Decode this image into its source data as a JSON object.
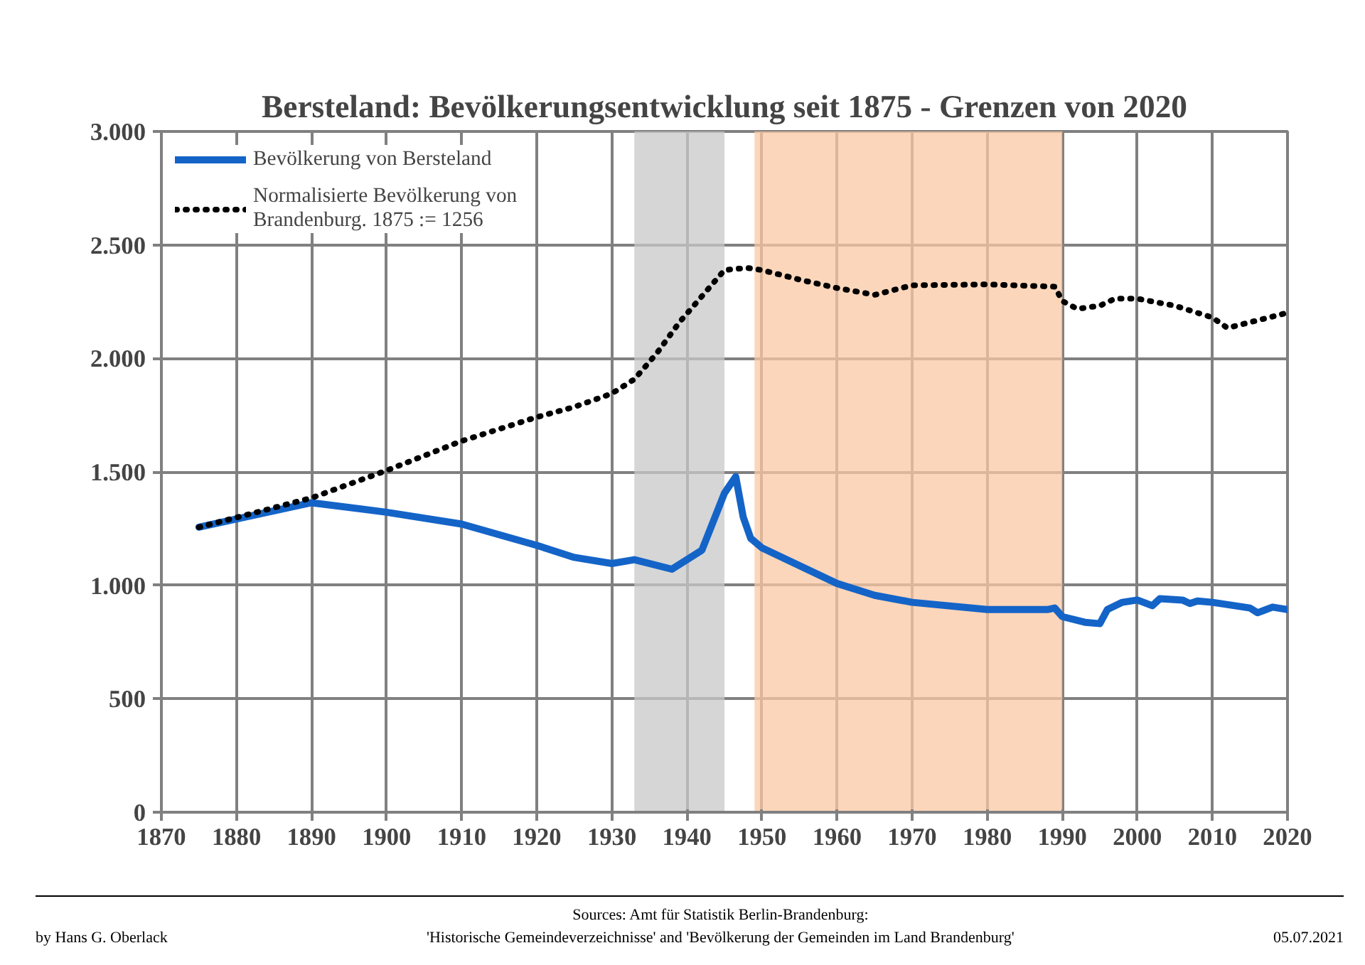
{
  "chart_data": {
    "type": "line",
    "title": "Bersteland: Bevölkerungsentwicklung seit 1875 - Grenzen von 2020",
    "series": [
      {
        "name": "Bevölkerung von Bersteland",
        "color": "#1464c8",
        "line_style": "solid",
        "x": [
          1875,
          1890,
          1900,
          1910,
          1920,
          1925,
          1930,
          1933,
          1938,
          1942,
          1945,
          1946.5,
          1947.5,
          1948.5,
          1950,
          1960,
          1965,
          1970,
          1980,
          1988,
          1989,
          1990,
          1993,
          1995,
          1996,
          1998,
          2000,
          2002,
          2003,
          2006,
          2007,
          2008,
          2010,
          2015,
          2016,
          2018,
          2020
        ],
        "values": [
          1256,
          1364,
          1322,
          1270,
          1176,
          1123,
          1096,
          1113,
          1071,
          1155,
          1406,
          1479,
          1301,
          1207,
          1165,
          1008,
          956,
          925,
          893,
          893,
          900,
          862,
          837,
          831,
          893,
          925,
          935,
          910,
          941,
          935,
          920,
          931,
          925,
          900,
          879,
          904,
          893
        ]
      },
      {
        "name": "Normalisierte Bevölkerung von\nBrandenburg. 1875 := 1256",
        "color": "#000000",
        "line_style": "dotted",
        "x": [
          1875,
          1890,
          1900,
          1910,
          1920,
          1925,
          1930,
          1933,
          1936,
          1939,
          1942,
          1945,
          1948,
          1950,
          1955,
          1960,
          1965,
          1970,
          1980,
          1989,
          1990,
          1992,
          1995,
          1997,
          2000,
          2005,
          2010,
          2012,
          2015,
          2020
        ],
        "values": [
          1256,
          1385,
          1506,
          1636,
          1741,
          1786,
          1845,
          1908,
          2023,
          2159,
          2274,
          2389,
          2399,
          2389,
          2347,
          2310,
          2280,
          2322,
          2326,
          2316,
          2253,
          2218,
          2232,
          2263,
          2263,
          2232,
          2180,
          2134,
          2159,
          2201
        ]
      }
    ],
    "xlim": [
      1870,
      2020
    ],
    "xticks": [
      1870,
      1880,
      1890,
      1900,
      1910,
      1920,
      1930,
      1940,
      1950,
      1960,
      1970,
      1980,
      1990,
      2000,
      2010,
      2020
    ],
    "ylim": [
      0,
      3000
    ],
    "yticks": [
      {
        "value": 0,
        "label": "0"
      },
      {
        "value": 500,
        "label": "500"
      },
      {
        "value": 1000,
        "label": "1.000"
      },
      {
        "value": 1500,
        "label": "1.500"
      },
      {
        "value": 2000,
        "label": "2.000"
      },
      {
        "value": 2500,
        "label": "2.500"
      },
      {
        "value": 3000,
        "label": "3.000"
      }
    ],
    "bands": [
      {
        "axis": "x",
        "from": 1933,
        "to": 1945,
        "color": "#c8c8c8"
      },
      {
        "axis": "x",
        "from": 1949,
        "to": 1990,
        "color": "#fbc8a4"
      }
    ],
    "grid": true,
    "legend": "top left",
    "annotations": [
      "Sources: Amt für Statistik Berlin-Brandenburg:\n'Historische Gemeindeverzeichnisse' and 'Bevölkerung der Gemeinden im Land Brandenburg'",
      "by Hans G. Oberlack",
      "05.07.2021"
    ]
  }
}
